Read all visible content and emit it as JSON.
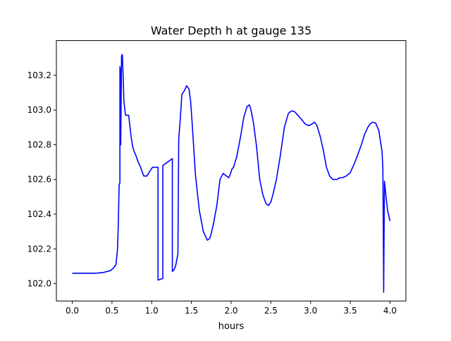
{
  "chart_data": {
    "type": "line",
    "title": "Water Depth h at gauge 135",
    "xlabel": "hours",
    "ylabel": "",
    "xlim": [
      -0.2,
      4.2
    ],
    "ylim": [
      101.9,
      103.4
    ],
    "xticks": [
      0.0,
      0.5,
      1.0,
      1.5,
      2.0,
      2.5,
      3.0,
      3.5,
      4.0
    ],
    "xtick_labels": [
      "0.0",
      "0.5",
      "1.0",
      "1.5",
      "2.0",
      "2.5",
      "3.0",
      "3.5",
      "4.0"
    ],
    "yticks": [
      102.0,
      102.2,
      102.4,
      102.6,
      102.8,
      103.0,
      103.2
    ],
    "ytick_labels": [
      "102.0",
      "102.2",
      "102.4",
      "102.6",
      "102.8",
      "103.0",
      "103.2"
    ],
    "grid": false,
    "legend": "none",
    "series": [
      {
        "color": "#0000ff",
        "x": [
          0.0,
          0.1,
          0.2,
          0.3,
          0.4,
          0.48,
          0.52,
          0.55,
          0.57,
          0.58,
          0.59,
          0.6,
          0.6,
          0.61,
          0.61,
          0.62,
          0.62,
          0.63,
          0.64,
          0.65,
          0.67,
          0.69,
          0.71,
          0.74,
          0.76,
          0.78,
          0.8,
          0.83,
          0.86,
          0.9,
          0.94,
          0.98,
          1.01,
          1.03,
          1.05,
          1.07,
          1.08,
          1.08,
          1.14,
          1.14,
          1.2,
          1.23,
          1.26,
          1.26,
          1.28,
          1.3,
          1.33,
          1.34,
          1.34,
          1.36,
          1.38,
          1.41,
          1.44,
          1.47,
          1.49,
          1.51,
          1.55,
          1.6,
          1.65,
          1.7,
          1.73,
          1.75,
          1.78,
          1.82,
          1.86,
          1.9,
          1.94,
          1.97,
          1.99,
          2.01,
          2.03,
          2.07,
          2.12,
          2.16,
          2.2,
          2.23,
          2.25,
          2.28,
          2.32,
          2.36,
          2.4,
          2.44,
          2.47,
          2.5,
          2.53,
          2.57,
          2.62,
          2.67,
          2.72,
          2.76,
          2.8,
          2.84,
          2.88,
          2.93,
          2.98,
          3.02,
          3.05,
          3.08,
          3.12,
          3.16,
          3.2,
          3.24,
          3.28,
          3.33,
          3.37,
          3.4,
          3.45,
          3.5,
          3.55,
          3.6,
          3.64,
          3.68,
          3.72,
          3.75,
          3.78,
          3.82,
          3.86,
          3.9,
          3.91,
          3.92,
          3.92,
          3.93,
          3.95,
          3.97,
          4.0
        ],
        "y": [
          102.06,
          102.06,
          102.06,
          102.06,
          102.065,
          102.075,
          102.09,
          102.11,
          102.2,
          102.35,
          102.57,
          102.58,
          103.25,
          103.2,
          102.8,
          103.29,
          103.31,
          103.32,
          103.2,
          103.05,
          102.97,
          102.97,
          102.97,
          102.85,
          102.79,
          102.76,
          102.74,
          102.7,
          102.67,
          102.62,
          102.62,
          102.65,
          102.67,
          102.67,
          102.67,
          102.67,
          102.67,
          102.02,
          102.03,
          102.68,
          102.7,
          102.71,
          102.72,
          102.07,
          102.08,
          102.1,
          102.17,
          102.83,
          102.83,
          102.95,
          103.09,
          103.11,
          103.14,
          103.12,
          103.05,
          102.92,
          102.63,
          102.42,
          102.3,
          102.25,
          102.26,
          102.29,
          102.35,
          102.45,
          102.6,
          102.635,
          102.62,
          102.61,
          102.63,
          102.66,
          102.67,
          102.73,
          102.85,
          102.96,
          103.02,
          103.03,
          103.0,
          102.93,
          102.79,
          102.6,
          102.51,
          102.46,
          102.45,
          102.47,
          102.52,
          102.6,
          102.74,
          102.9,
          102.98,
          102.995,
          102.99,
          102.97,
          102.95,
          102.92,
          102.91,
          102.92,
          102.93,
          102.91,
          102.85,
          102.77,
          102.67,
          102.62,
          102.6,
          102.6,
          102.61,
          102.61,
          102.62,
          102.64,
          102.69,
          102.75,
          102.8,
          102.86,
          102.9,
          102.92,
          102.93,
          102.925,
          102.88,
          102.76,
          102.66,
          102.0,
          101.95,
          102.59,
          102.5,
          102.42,
          102.36
        ]
      }
    ]
  }
}
